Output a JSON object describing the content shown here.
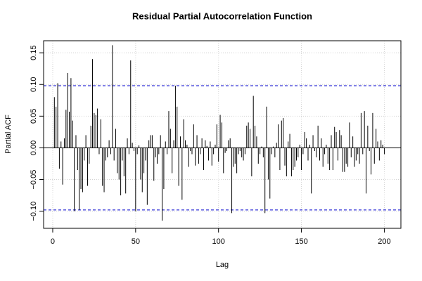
{
  "chart_data": {
    "type": "spike",
    "title": "Residual Partial Autocorrelation Function",
    "x_label": "Lag",
    "y_label": "Partial ACF",
    "color": "#000000",
    "ci_color": "#0000cc",
    "grid": true,
    "ci": [
      -0.098,
      0.098
    ],
    "xlim": [
      -5.5,
      210
    ],
    "ylim": [
      -0.127,
      0.169
    ],
    "xticks": [
      0,
      50,
      100,
      150,
      200
    ],
    "yticks": [
      {
        "value": -0.1,
        "label": "−0.10"
      },
      {
        "value": -0.05,
        "label": "−0.05"
      },
      {
        "value": 0,
        "label": "0.00"
      },
      {
        "value": 0.05,
        "label": "0.05"
      },
      {
        "value": 0.1,
        "label": "0.10"
      },
      {
        "value": 0.15,
        "label": "0.15"
      }
    ],
    "x": [
      1,
      2,
      3,
      4,
      5,
      6,
      7,
      8,
      9,
      10,
      11,
      12,
      13,
      14,
      15,
      16,
      17,
      18,
      19,
      20,
      21,
      22,
      23,
      24,
      25,
      26,
      27,
      28,
      29,
      30,
      31,
      32,
      33,
      34,
      35,
      36,
      37,
      38,
      39,
      40,
      41,
      42,
      43,
      44,
      45,
      46,
      47,
      48,
      49,
      50,
      51,
      52,
      53,
      54,
      55,
      56,
      57,
      58,
      59,
      60,
      61,
      62,
      63,
      64,
      65,
      66,
      67,
      68,
      69,
      70,
      71,
      72,
      73,
      74,
      75,
      76,
      77,
      78,
      79,
      80,
      81,
      82,
      83,
      84,
      85,
      86,
      87,
      88,
      89,
      90,
      91,
      92,
      93,
      94,
      95,
      96,
      97,
      98,
      99,
      100,
      101,
      102,
      103,
      104,
      105,
      106,
      107,
      108,
      109,
      110,
      111,
      112,
      113,
      114,
      115,
      116,
      117,
      118,
      119,
      120,
      121,
      122,
      123,
      124,
      125,
      126,
      127,
      128,
      129,
      130,
      131,
      132,
      133,
      134,
      135,
      136,
      137,
      138,
      139,
      140,
      141,
      142,
      143,
      144,
      145,
      146,
      147,
      148,
      149,
      150,
      151,
      152,
      153,
      154,
      155,
      156,
      157,
      158,
      159,
      160,
      161,
      162,
      163,
      164,
      165,
      166,
      167,
      168,
      169,
      170,
      171,
      172,
      173,
      174,
      175,
      176,
      177,
      178,
      179,
      180,
      181,
      182,
      183,
      184,
      185,
      186,
      187,
      188,
      189,
      190,
      191,
      192,
      193,
      194,
      195,
      196,
      197,
      198,
      199,
      200
    ],
    "values": [
      0.08,
      0.065,
      0.102,
      -0.033,
      0.01,
      -0.058,
      0.015,
      0.06,
      0.118,
      0.057,
      0.11,
      0.043,
      -0.1,
      0.02,
      -0.035,
      -0.098,
      -0.065,
      -0.07,
      -0.02,
      0.02,
      -0.06,
      -0.025,
      0.035,
      0.14,
      0.055,
      0.052,
      0.062,
      -0.01,
      0.045,
      -0.06,
      -0.07,
      -0.02,
      -0.015,
      0.012,
      -0.01,
      0.162,
      -0.02,
      0.03,
      -0.04,
      -0.05,
      -0.075,
      -0.02,
      -0.045,
      -0.072,
      0.015,
      -0.01,
      0.138,
      0.008,
      -0.005,
      -0.1,
      -0.01,
      0.004,
      -0.05,
      -0.07,
      -0.04,
      -0.02,
      -0.09,
      0.012,
      0.02,
      0.02,
      -0.052,
      -0.015,
      -0.025,
      -0.01,
      0.02,
      -0.115,
      -0.065,
      0.01,
      -0.01,
      0.058,
      0.03,
      -0.04,
      0.012,
      0.098,
      0.065,
      -0.06,
      0.018,
      -0.082,
      0.045,
      0.012,
      0.005,
      -0.03,
      -0.005,
      -0.01,
      0.037,
      -0.028,
      0.02,
      -0.025,
      -0.01,
      0.015,
      -0.035,
      0.012,
      0.003,
      -0.02,
      0.01,
      -0.028,
      -0.01,
      0.005,
      0.037,
      -0.022,
      0.052,
      0.04,
      -0.04,
      -0.008,
      -0.005,
      0.012,
      0.015,
      -0.103,
      -0.03,
      -0.025,
      -0.04,
      -0.01,
      -0.005,
      -0.015,
      -0.02,
      -0.01,
      0.035,
      0.04,
      0.03,
      -0.045,
      0.082,
      0.035,
      0.018,
      -0.025,
      -0.01,
      0.002,
      -0.015,
      -0.103,
      0.065,
      -0.05,
      -0.08,
      -0.01,
      0.002,
      -0.015,
      0.008,
      0.037,
      -0.035,
      0.043,
      0.047,
      -0.028,
      -0.045,
      0.01,
      0.022,
      -0.045,
      -0.035,
      -0.03,
      -0.02,
      -0.015,
      0.005,
      -0.035,
      -0.01,
      0.025,
      0.015,
      -0.02,
      0.005,
      -0.072,
      0.02,
      -0.005,
      -0.015,
      0.035,
      -0.02,
      0.015,
      -0.03,
      -0.01,
      0.005,
      -0.025,
      -0.035,
      0.02,
      -0.035,
      0.033,
      0.025,
      -0.02,
      0.028,
      0.02,
      -0.038,
      -0.038,
      -0.025,
      -0.03,
      0.04,
      -0.015,
      0.018,
      -0.03,
      -0.02,
      -0.01,
      -0.025,
      0.055,
      -0.01,
      0.058,
      -0.072,
      0.035,
      -0.005,
      -0.042,
      0.055,
      -0.025,
      0.03,
      0.01,
      -0.02,
      0.012,
      0.005,
      -0.01
    ]
  }
}
